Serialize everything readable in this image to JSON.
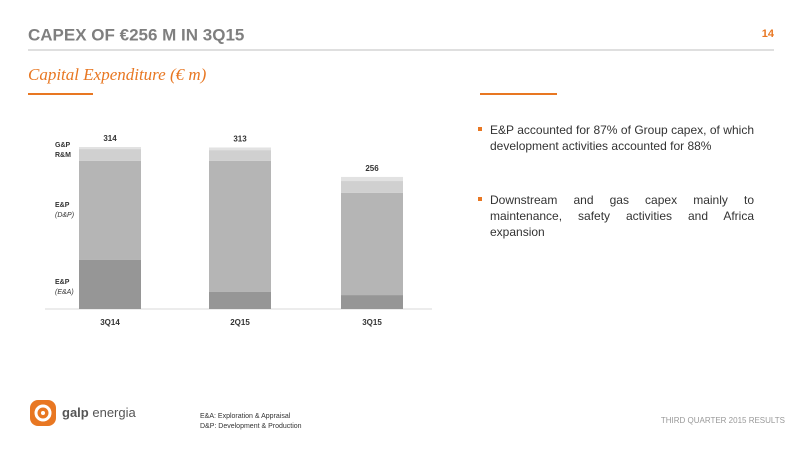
{
  "header": {
    "title": "CAPEX OF €256 M IN 3Q15",
    "page": "14"
  },
  "chart_data": {
    "type": "stacked-bar",
    "title": "Capital Expenditure (€ m)",
    "categories": [
      "3Q14",
      "2Q15",
      "3Q15"
    ],
    "totals": [
      314,
      313,
      256
    ],
    "series": [
      {
        "name": "E&P",
        "detail": "(E&A)",
        "color": "#969696",
        "values": [
          95,
          33,
          27
        ]
      },
      {
        "name": "E&P",
        "detail": "(D&P)",
        "color": "#b5b5b5",
        "values": [
          192,
          254,
          198
        ]
      },
      {
        "name": "R&M",
        "color": "#d0d0d0",
        "values": [
          23,
          21,
          23
        ]
      },
      {
        "name": "G&P",
        "color": "#e2e2e2",
        "values": [
          4,
          5,
          8
        ]
      }
    ]
  },
  "bullets": [
    "E&P accounted for 87% of Group capex, of which development activities accounted for 88%",
    "Downstream and gas capex mainly to maintenance, safety activities and Africa expansion"
  ],
  "footer": {
    "brand_bold": "galp",
    "brand": "energia",
    "notes": [
      "E&A: Exploration & Appraisal",
      "D&P: Development & Production"
    ],
    "right": "THIRD QUARTER 2015 RESULTS"
  }
}
